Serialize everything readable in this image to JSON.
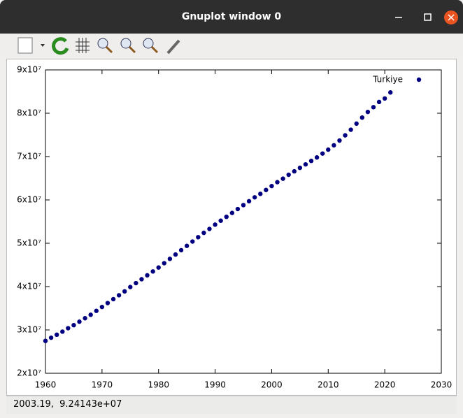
{
  "window": {
    "title": "Gnuplot window 0"
  },
  "status": "2003.19,  9.24143e+07",
  "chart_data": {
    "type": "scatter",
    "legend": "top-right",
    "grid": false,
    "series": [
      {
        "name": "Turkiye",
        "color": "#000080",
        "x": [
          1960,
          1961,
          1962,
          1963,
          1964,
          1965,
          1966,
          1967,
          1968,
          1969,
          1970,
          1971,
          1972,
          1973,
          1974,
          1975,
          1976,
          1977,
          1978,
          1979,
          1980,
          1981,
          1982,
          1983,
          1984,
          1985,
          1986,
          1987,
          1988,
          1989,
          1990,
          1991,
          1992,
          1993,
          1994,
          1995,
          1996,
          1997,
          1998,
          1999,
          2000,
          2001,
          2002,
          2003,
          2004,
          2005,
          2006,
          2007,
          2008,
          2009,
          2010,
          2011,
          2012,
          2013,
          2014,
          2015,
          2016,
          2017,
          2018,
          2019,
          2020,
          2021
        ],
        "values": [
          27470000,
          28200000,
          28900000,
          29600000,
          30400000,
          31100000,
          31900000,
          32700000,
          33500000,
          34400000,
          35300000,
          36200000,
          37100000,
          38000000,
          38900000,
          39900000,
          40800000,
          41700000,
          42600000,
          43500000,
          44400000,
          45400000,
          46400000,
          47400000,
          48400000,
          49400000,
          50400000,
          51400000,
          52400000,
          53300000,
          54300000,
          55200000,
          56100000,
          57000000,
          57900000,
          58800000,
          59700000,
          60600000,
          61400000,
          62300000,
          63200000,
          64100000,
          64900000,
          65800000,
          66600000,
          67400000,
          68200000,
          69000000,
          69800000,
          70700000,
          71600000,
          72600000,
          73700000,
          74900000,
          76200000,
          77600000,
          79000000,
          80300000,
          81400000,
          82600000,
          83400000,
          84800000
        ]
      }
    ],
    "xlim": [
      1960,
      2030
    ],
    "xticks": [
      1960,
      1970,
      1980,
      1990,
      2000,
      2010,
      2020,
      2030
    ],
    "ylim": [
      20000000,
      90000000
    ],
    "yticks": [
      {
        "value": 20000000,
        "label": "2x10⁷"
      },
      {
        "value": 30000000,
        "label": "3x10⁷"
      },
      {
        "value": 40000000,
        "label": "4x10⁷"
      },
      {
        "value": 50000000,
        "label": "5x10⁷"
      },
      {
        "value": 60000000,
        "label": "6x10⁷"
      },
      {
        "value": 70000000,
        "label": "7x10⁷"
      },
      {
        "value": 80000000,
        "label": "8x10⁷"
      },
      {
        "value": 90000000,
        "label": "9x10⁷"
      }
    ]
  }
}
